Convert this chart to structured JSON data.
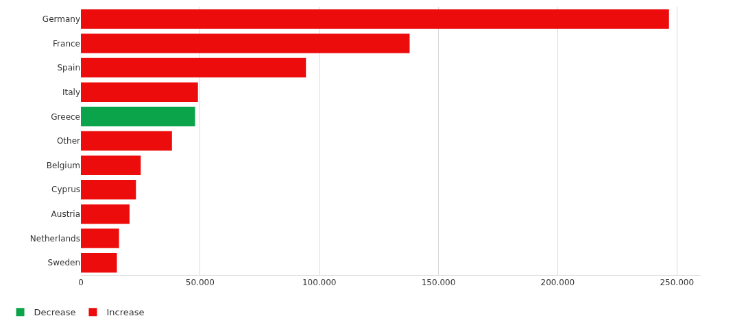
{
  "chart_data": {
    "type": "bar",
    "orientation": "horizontal",
    "categories": [
      "Germany",
      "France",
      "Spain",
      "Italy",
      "Greece",
      "Other",
      "Belgium",
      "Cyprus",
      "Austria",
      "Netherlands",
      "Sweden"
    ],
    "series": [
      {
        "name": "Decrease",
        "color": "#0ca44a",
        "values": [
          null,
          null,
          null,
          null,
          47900,
          null,
          null,
          null,
          null,
          null,
          null
        ]
      },
      {
        "name": "Increase",
        "color": "#ec0c0c",
        "values": [
          246700,
          137900,
          94400,
          49100,
          null,
          38200,
          25100,
          23100,
          20400,
          16000,
          15100
        ]
      }
    ],
    "xlim": [
      0,
      260000
    ],
    "xticks": [
      0,
      {
        "value": 50000,
        "label": "50.000"
      },
      {
        "value": 100000,
        "label": "100.000"
      },
      {
        "value": 150000,
        "label": "150.000"
      },
      {
        "value": 200000,
        "label": "200.000"
      },
      {
        "value": 250000,
        "label": "250.000"
      }
    ],
    "grid": "x",
    "legend": "bottom left"
  }
}
